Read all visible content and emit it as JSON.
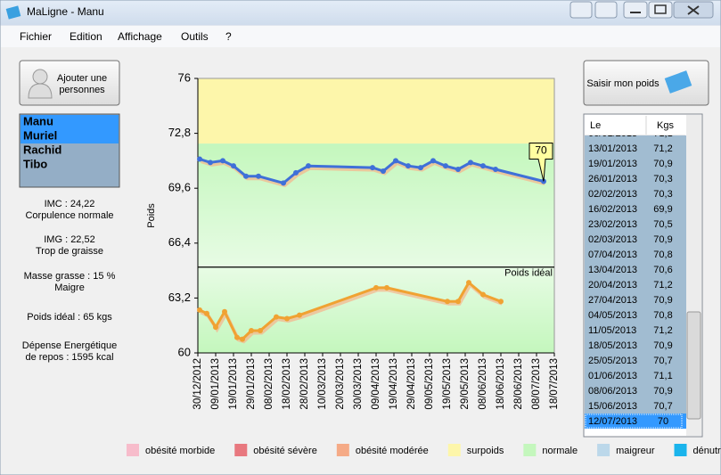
{
  "window": {
    "title": "MaLigne - Manu"
  },
  "menu": [
    "Fichier",
    "Edition",
    "Affichage",
    "Outils",
    "?"
  ],
  "add_button": [
    "Ajouter une",
    "personnes"
  ],
  "persons": [
    {
      "name": "Manu",
      "selected": true
    },
    {
      "name": "Muriel",
      "selected": true
    },
    {
      "name": "Rachid",
      "selected": false
    },
    {
      "name": "Tibo",
      "selected": false
    }
  ],
  "stats": [
    [
      "IMC : 24,22",
      "Corpulence normale"
    ],
    [
      "IMG : 22,52",
      "Trop de graisse"
    ],
    [
      "Masse grasse : 15 %",
      "Maigre"
    ],
    [
      "Poids idéal : 65 kgs"
    ],
    [
      "Dépense Energétique",
      "de repos : 1595 kcal"
    ]
  ],
  "weigh_button": "Saisir mon poids",
  "table": {
    "headers": [
      "Le",
      "Kgs"
    ],
    "selected": 20
  },
  "chart_data": {
    "type": "line",
    "y_label": "Poids",
    "ylim": [
      60,
      76
    ],
    "yticks": [
      60,
      {
        "value": 63.2,
        "label": "63,2"
      },
      {
        "value": 66.4,
        "label": "66,4"
      },
      {
        "value": 69.6,
        "label": "69,6"
      },
      {
        "value": 72.8,
        "label": "72,8"
      },
      76
    ],
    "xlim": [
      "30/12/2012",
      "18/07/2013"
    ],
    "xticks": [
      "30/12/2012",
      "09/01/2013",
      "19/01/2013",
      "29/01/2013",
      "08/02/2013",
      "18/02/2013",
      "28/02/2013",
      "10/03/2013",
      "20/03/2013",
      "30/03/2013",
      "09/04/2013",
      "19/04/2013",
      "29/04/2013",
      "09/05/2013",
      "19/05/2013",
      "29/05/2013",
      "08/06/2013",
      "18/06/2013",
      "28/06/2013",
      "08/07/2013",
      "18/07/2013"
    ],
    "ideal": {
      "value": 65,
      "label": "Poids idéal"
    },
    "legend": [
      {
        "name": "obésité morbide",
        "color": "#f7bccb"
      },
      {
        "name": "obésité sévère",
        "color": "#e8787f"
      },
      {
        "name": "obésité modérée",
        "color": "#f5aa86"
      },
      {
        "name": "surpoids",
        "color": "#fdf6aa",
        "range": [
          72.2,
          76
        ]
      },
      {
        "name": "normale",
        "color": "#c4f7bd",
        "range": [
          60,
          72.2
        ]
      },
      {
        "name": "maigreur",
        "color": "#bcd8ea"
      },
      {
        "name": "dénutrition",
        "color": "#1ab4ec"
      }
    ],
    "series": [
      {
        "color": "#3f70d8",
        "x": [
          "31/12/2012",
          "06/01/2013",
          "13/01/2013",
          "19/01/2013",
          "26/01/2013",
          "02/02/2013",
          "16/02/2013",
          "23/02/2013",
          "02/03/2013",
          "07/04/2013",
          "13/04/2013",
          "20/04/2013",
          "27/04/2013",
          "04/05/2013",
          "11/05/2013",
          "18/05/2013",
          "25/05/2013",
          "01/06/2013",
          "08/06/2013",
          "15/06/2013",
          "12/07/2013"
        ],
        "values": [
          71.3,
          71.1,
          71.2,
          70.9,
          70.3,
          70.3,
          69.9,
          70.5,
          70.9,
          70.8,
          70.6,
          71.2,
          70.9,
          70.8,
          71.2,
          70.9,
          70.7,
          71.1,
          70.9,
          70.7,
          70
        ],
        "value_labels": [
          "71,3",
          "71,1",
          "71,2",
          "70,9",
          "70,3",
          "70,3",
          "69,9",
          "70,5",
          "70,9",
          "70,8",
          "70,6",
          "71,2",
          "70,9",
          "70,8",
          "71,2",
          "70,9",
          "70,7",
          "71,1",
          "70,9",
          "70,7",
          "70"
        ]
      },
      {
        "color": "#f0a232",
        "x": [
          "31/12/2012",
          "04/01/2013",
          "09/01/2013",
          "14/01/2013",
          "21/01/2013",
          "24/01/2013",
          "29/01/2013",
          "03/02/2013",
          "12/02/2013",
          "18/02/2013",
          "25/02/2013",
          "09/04/2013",
          "15/04/2013",
          "19/05/2013",
          "25/05/2013",
          "31/05/2013",
          "08/06/2013",
          "18/06/2013"
        ],
        "values": [
          62.5,
          62.3,
          61.5,
          62.4,
          60.9,
          60.8,
          61.3,
          61.3,
          62.1,
          62.0,
          62.2,
          63.8,
          63.8,
          63.0,
          63.0,
          64.1,
          63.4,
          63.0
        ]
      }
    ]
  }
}
